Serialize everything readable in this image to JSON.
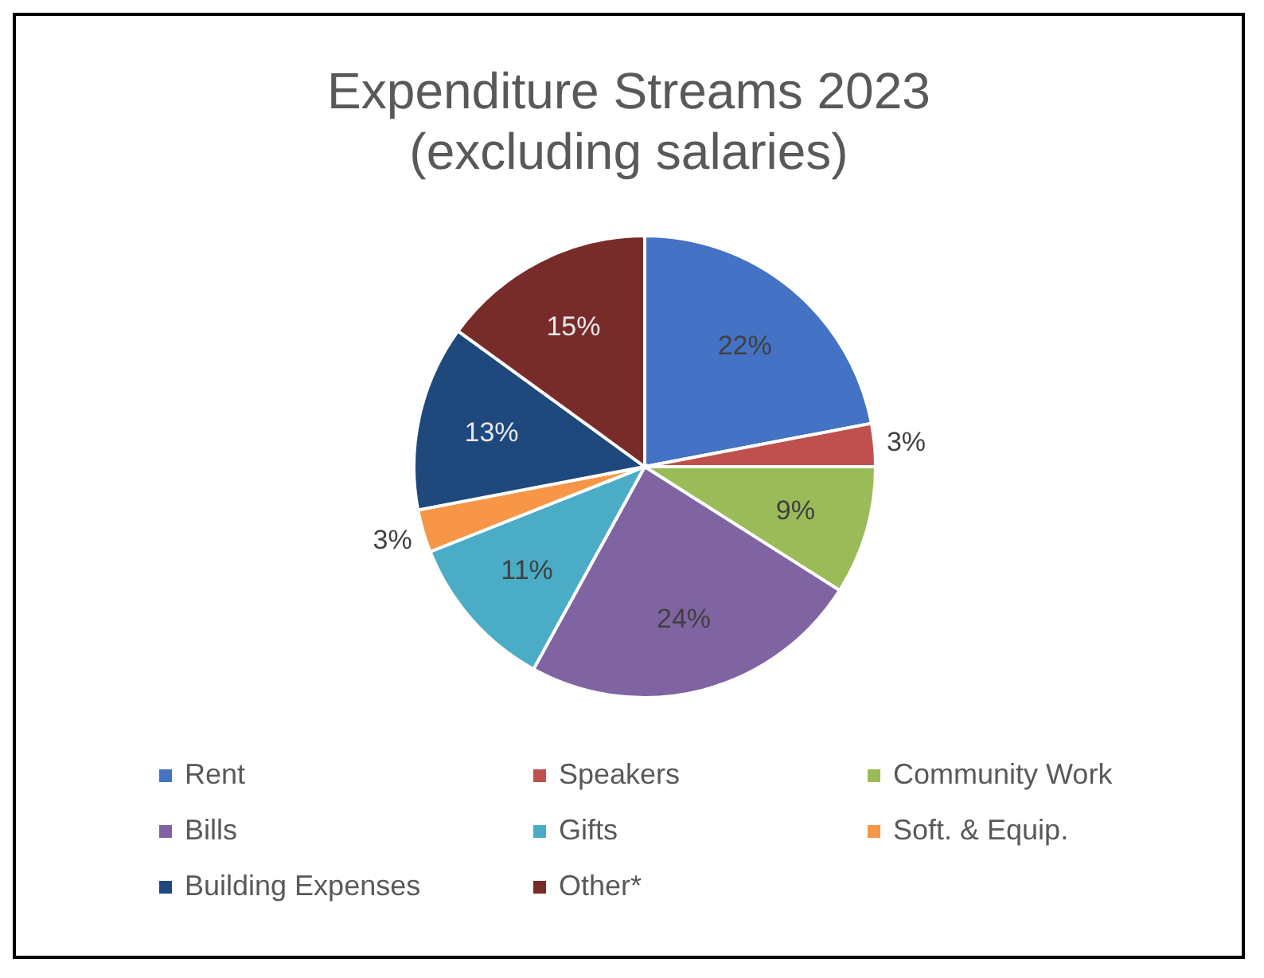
{
  "chart_data": {
    "type": "pie",
    "title": "Expenditure Streams 2023",
    "subtitle": "(excluding salaries)",
    "categories": [
      "Rent",
      "Speakers",
      "Community Work",
      "Bills",
      "Gifts",
      "Soft. & Equip.",
      "Building Expenses",
      "Other*"
    ],
    "values": [
      22,
      3,
      9,
      24,
      11,
      3,
      13,
      15
    ],
    "colors": [
      "#4472c4",
      "#c0504d",
      "#9bbb59",
      "#8064a2",
      "#4bacc6",
      "#f79646",
      "#1f497d",
      "#772c2a"
    ],
    "value_labels": [
      "22%",
      "3%",
      "9%",
      "24%",
      "11%",
      "3%",
      "13%",
      "15%"
    ],
    "legend": "bottom"
  }
}
